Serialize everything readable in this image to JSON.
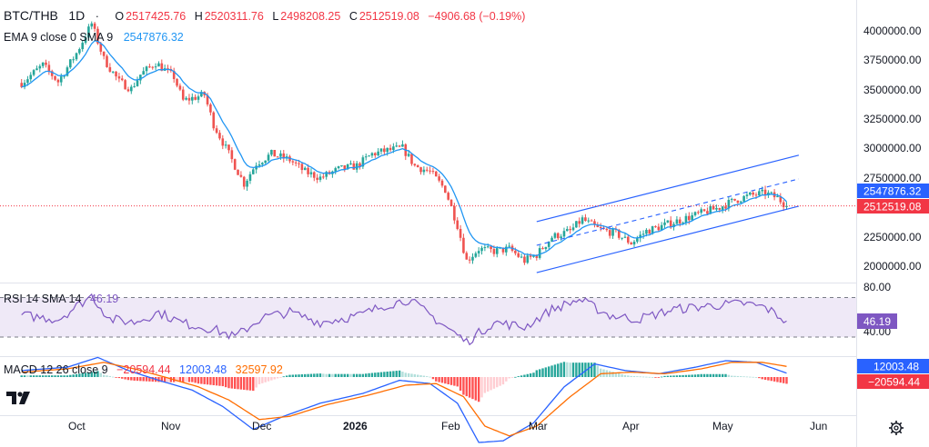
{
  "colors": {
    "up": "#26a69a",
    "down": "#ef5350",
    "ema": "#2196f3",
    "rsi": "#7e57c2",
    "rsi_band": "#ede7f6",
    "macd": "#2962ff",
    "signal": "#ff6d00",
    "channel": "#2962ff",
    "last_price": "#f23645",
    "ema_tag": "#2962ff",
    "rsi_tag": "#7e57c2"
  },
  "header": {
    "symbol": "BTC/THB",
    "interval": "1D",
    "separator": "·",
    "o_label": "O",
    "open": "2517425.76",
    "h_label": "H",
    "high": "2520311.76",
    "l_label": "L",
    "low": "2498208.25",
    "c_label": "C",
    "close": "2512519.08",
    "change": "−4906.68 (−0.19%)"
  },
  "ema_legend": {
    "label": "EMA 9 close 0 SMA 9",
    "value": "2547876.32"
  },
  "rsi_legend": {
    "label": "RSI 14 SMA 14",
    "value": "46.19"
  },
  "macd_legend": {
    "label": "MACD 12 26 close 9",
    "hist": "−20594.44",
    "macd": "12003.48",
    "signal": "32597.92"
  },
  "price_axis": {
    "ticks": [
      "4000000.00",
      "3750000.00",
      "3500000.00",
      "3250000.00",
      "3000000.00",
      "2750000.00",
      "2250000.00",
      "2000000.00"
    ],
    "ema_tag": "2547876.32",
    "last_tag": "2512519.08"
  },
  "rsi_axis": {
    "ticks": [
      "80.00",
      "40.00"
    ],
    "value_tag": "46.19"
  },
  "macd_axis": {
    "macd_tag": "12003.48",
    "hist_tag": "−20594.44"
  },
  "time_axis": {
    "labels": [
      "Oct",
      "Nov",
      "Dec",
      "2026",
      "Feb",
      "Mar",
      "Apr",
      "May",
      "Jun"
    ]
  },
  "chart_data": {
    "type": "candlestick",
    "symbol": "BTC/THB",
    "interval": "1D",
    "price_ylim": [
      1850000,
      4150000
    ],
    "price_anchors": [
      {
        "x": "Sep 13",
        "close": 3550000
      },
      {
        "x": "Sep 20",
        "close": 3700000
      },
      {
        "x": "Sep 25",
        "close": 3560000
      },
      {
        "x": "Oct 1",
        "close": 3800000
      },
      {
        "x": "Oct 6",
        "close": 4050000
      },
      {
        "x": "Oct 10",
        "close": 3750000
      },
      {
        "x": "Oct 15",
        "close": 3560000
      },
      {
        "x": "Oct 19",
        "close": 3500000
      },
      {
        "x": "Oct 22",
        "close": 3620000
      },
      {
        "x": "Oct 27",
        "close": 3720000
      },
      {
        "x": "Nov 2",
        "close": 3600000
      },
      {
        "x": "Nov 5",
        "close": 3400000
      },
      {
        "x": "Nov 12",
        "close": 3450000
      },
      {
        "x": "Nov 15",
        "close": 3200000
      },
      {
        "x": "Nov 20",
        "close": 2950000
      },
      {
        "x": "Nov 25",
        "close": 2700000
      },
      {
        "x": "Nov 29",
        "close": 2870000
      },
      {
        "x": "Dec 4",
        "close": 2950000
      },
      {
        "x": "Dec 10",
        "close": 2900000
      },
      {
        "x": "Dec 15",
        "close": 2800000
      },
      {
        "x": "Dec 20",
        "close": 2750000
      },
      {
        "x": "Dec 26",
        "close": 2820000
      },
      {
        "x": "Jan 1",
        "close": 2850000
      },
      {
        "x": "Jan 6",
        "close": 2950000
      },
      {
        "x": "Jan 11",
        "close": 2980000
      },
      {
        "x": "Jan 16",
        "close": 3000000
      },
      {
        "x": "Jan 20",
        "close": 2850000
      },
      {
        "x": "Jan 25",
        "close": 2800000
      },
      {
        "x": "Jan 30",
        "close": 2650000
      },
      {
        "x": "Feb 3",
        "close": 2350000
      },
      {
        "x": "Feb 6",
        "close": 2050000
      },
      {
        "x": "Feb 10",
        "close": 2150000
      },
      {
        "x": "Feb 15",
        "close": 2130000
      },
      {
        "x": "Feb 20",
        "close": 2150000
      },
      {
        "x": "Feb 25",
        "close": 2050000
      },
      {
        "x": "Mar 1",
        "close": 2100000
      },
      {
        "x": "Mar 6",
        "close": 2250000
      },
      {
        "x": "Mar 12",
        "close": 2300000
      },
      {
        "x": "Mar 16",
        "close": 2400000
      },
      {
        "x": "Mar 21",
        "close": 2320000
      },
      {
        "x": "Mar 27",
        "close": 2280000
      },
      {
        "x": "Apr 1",
        "close": 2200000
      },
      {
        "x": "Apr 6",
        "close": 2300000
      },
      {
        "x": "Apr 12",
        "close": 2350000
      },
      {
        "x": "Apr 18",
        "close": 2400000
      },
      {
        "x": "Apr 24",
        "close": 2450000
      },
      {
        "x": "Apr 30",
        "close": 2500000
      },
      {
        "x": "May 5",
        "close": 2560000
      },
      {
        "x": "May 10",
        "close": 2600000
      },
      {
        "x": "May 15",
        "close": 2620000
      },
      {
        "x": "May 19",
        "close": 2580000
      },
      {
        "x": "May 22",
        "close": 2512519
      }
    ],
    "ema_last": 2547876.32,
    "last_close": 2512519.08,
    "channel": {
      "upper": [
        {
          "x": "Mar 1",
          "y": 2380000
        },
        {
          "x": "May 26",
          "y": 2940000
        }
      ],
      "mid": [
        {
          "x": "Mar 1",
          "y": 2180000
        },
        {
          "x": "May 26",
          "y": 2740000
        }
      ],
      "lower": [
        {
          "x": "Mar 1",
          "y": 1950000
        },
        {
          "x": "May 26",
          "y": 2510000
        }
      ]
    },
    "rsi": {
      "length": 14,
      "ylim": [
        20,
        90
      ],
      "upper_band": 70,
      "lower_band": 30,
      "anchors": [
        {
          "x": "Sep 13",
          "v": 52
        },
        {
          "x": "Sep 25",
          "v": 48
        },
        {
          "x": "Oct 6",
          "v": 72
        },
        {
          "x": "Oct 12",
          "v": 48
        },
        {
          "x": "Oct 20",
          "v": 45
        },
        {
          "x": "Oct 28",
          "v": 55
        },
        {
          "x": "Nov 5",
          "v": 44
        },
        {
          "x": "Nov 15",
          "v": 38
        },
        {
          "x": "Nov 22",
          "v": 30
        },
        {
          "x": "Dec 1",
          "v": 50
        },
        {
          "x": "Dec 10",
          "v": 55
        },
        {
          "x": "Dec 20",
          "v": 45
        },
        {
          "x": "Jan 2",
          "v": 52
        },
        {
          "x": "Jan 10",
          "v": 62
        },
        {
          "x": "Jan 18",
          "v": 68
        },
        {
          "x": "Jan 26",
          "v": 50
        },
        {
          "x": "Feb 3",
          "v": 32
        },
        {
          "x": "Feb 6",
          "v": 25
        },
        {
          "x": "Feb 15",
          "v": 45
        },
        {
          "x": "Feb 25",
          "v": 40
        },
        {
          "x": "Mar 6",
          "v": 58
        },
        {
          "x": "Mar 15",
          "v": 68
        },
        {
          "x": "Mar 25",
          "v": 52
        },
        {
          "x": "Apr 3",
          "v": 48
        },
        {
          "x": "Apr 15",
          "v": 58
        },
        {
          "x": "Apr 28",
          "v": 62
        },
        {
          "x": "May 8",
          "v": 64
        },
        {
          "x": "May 15",
          "v": 60
        },
        {
          "x": "May 22",
          "v": 46.19
        }
      ]
    },
    "macd": {
      "fast": 12,
      "slow": 26,
      "signal": 9,
      "ylim": [
        -230000,
        110000
      ],
      "hist_last": -20594.44,
      "macd_last": 12003.48,
      "signal_last": 32597.92,
      "macd_anchors": [
        {
          "x": "Sep 13",
          "v": 20000
        },
        {
          "x": "Sep 28",
          "v": 30000
        },
        {
          "x": "Oct 8",
          "v": 60000
        },
        {
          "x": "Oct 18",
          "v": 20000
        },
        {
          "x": "Oct 28",
          "v": -10000
        },
        {
          "x": "Nov 8",
          "v": -40000
        },
        {
          "x": "Nov 18",
          "v": -90000
        },
        {
          "x": "Nov 28",
          "v": -160000
        },
        {
          "x": "Dec 8",
          "v": -120000
        },
        {
          "x": "Dec 20",
          "v": -80000
        },
        {
          "x": "Jan 3",
          "v": -50000
        },
        {
          "x": "Jan 15",
          "v": -10000
        },
        {
          "x": "Jan 25",
          "v": -20000
        },
        {
          "x": "Feb 3",
          "v": -80000
        },
        {
          "x": "Feb 10",
          "v": -200000
        },
        {
          "x": "Feb 18",
          "v": -195000
        },
        {
          "x": "Feb 28",
          "v": -140000
        },
        {
          "x": "Mar 10",
          "v": -30000
        },
        {
          "x": "Mar 20",
          "v": 40000
        },
        {
          "x": "Mar 30",
          "v": 20000
        },
        {
          "x": "Apr 10",
          "v": 10000
        },
        {
          "x": "Apr 22",
          "v": 30000
        },
        {
          "x": "May 2",
          "v": 50000
        },
        {
          "x": "May 12",
          "v": 45000
        },
        {
          "x": "May 22",
          "v": 12003.48
        }
      ],
      "signal_anchors": [
        {
          "x": "Sep 13",
          "v": 15000
        },
        {
          "x": "Sep 28",
          "v": 25000
        },
        {
          "x": "Oct 10",
          "v": 45000
        },
        {
          "x": "Oct 20",
          "v": 25000
        },
        {
          "x": "Oct 30",
          "v": 0
        },
        {
          "x": "Nov 10",
          "v": -30000
        },
        {
          "x": "Nov 20",
          "v": -70000
        },
        {
          "x": "Nov 30",
          "v": -130000
        },
        {
          "x": "Dec 10",
          "v": -120000
        },
        {
          "x": "Dec 22",
          "v": -85000
        },
        {
          "x": "Jan 5",
          "v": -55000
        },
        {
          "x": "Jan 17",
          "v": -25000
        },
        {
          "x": "Jan 27",
          "v": -20000
        },
        {
          "x": "Feb 5",
          "v": -60000
        },
        {
          "x": "Feb 12",
          "v": -150000
        },
        {
          "x": "Feb 20",
          "v": -180000
        },
        {
          "x": "Mar 1",
          "v": -150000
        },
        {
          "x": "Mar 12",
          "v": -60000
        },
        {
          "x": "Mar 22",
          "v": 10000
        },
        {
          "x": "Apr 1",
          "v": 15000
        },
        {
          "x": "Apr 12",
          "v": 10000
        },
        {
          "x": "Apr 24",
          "v": 25000
        },
        {
          "x": "May 4",
          "v": 45000
        },
        {
          "x": "May 14",
          "v": 45000
        },
        {
          "x": "May 22",
          "v": 32597.92
        }
      ]
    },
    "x_ticks": [
      "Oct",
      "Nov",
      "Dec",
      "2026",
      "Feb",
      "Mar",
      "Apr",
      "May",
      "Jun"
    ]
  }
}
